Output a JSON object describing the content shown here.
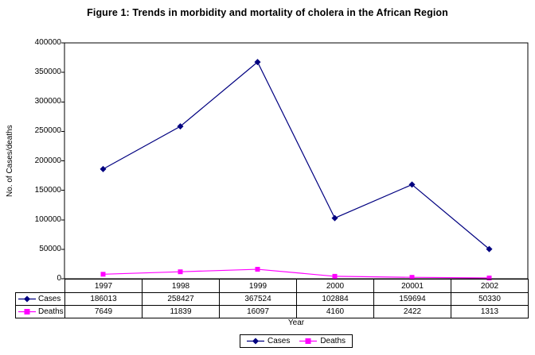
{
  "title": "Figure 1: Trends in morbidity and mortality of cholera in the African Region",
  "colors": {
    "cases_series": "#000080",
    "deaths_series": "#FF00FF",
    "axis": "#000000",
    "background": "#FFFFFF"
  },
  "chart_data": {
    "type": "line",
    "title": "Figure 1: Trends in morbidity and mortality of cholera in the African Region",
    "xlabel": "Year",
    "ylabel": "No. of Cases/deaths",
    "categories": [
      "1997",
      "1998",
      "1999",
      "2000",
      "20001",
      "2002"
    ],
    "series": [
      {
        "name": "Cases",
        "values": [
          186013,
          258427,
          367524,
          102884,
          159694,
          50330
        ],
        "color": "#000080",
        "marker": "diamond"
      },
      {
        "name": "Deaths",
        "values": [
          7649,
          11839,
          16097,
          4160,
          2422,
          1313
        ],
        "color": "#FF00FF",
        "marker": "square"
      }
    ],
    "ylim": [
      0,
      400000
    ],
    "y_ticks": [
      0,
      50000,
      100000,
      150000,
      200000,
      250000,
      300000,
      350000,
      400000
    ],
    "grid": false,
    "legend_position": "bottom",
    "data_table_with_legend_keys": true
  }
}
